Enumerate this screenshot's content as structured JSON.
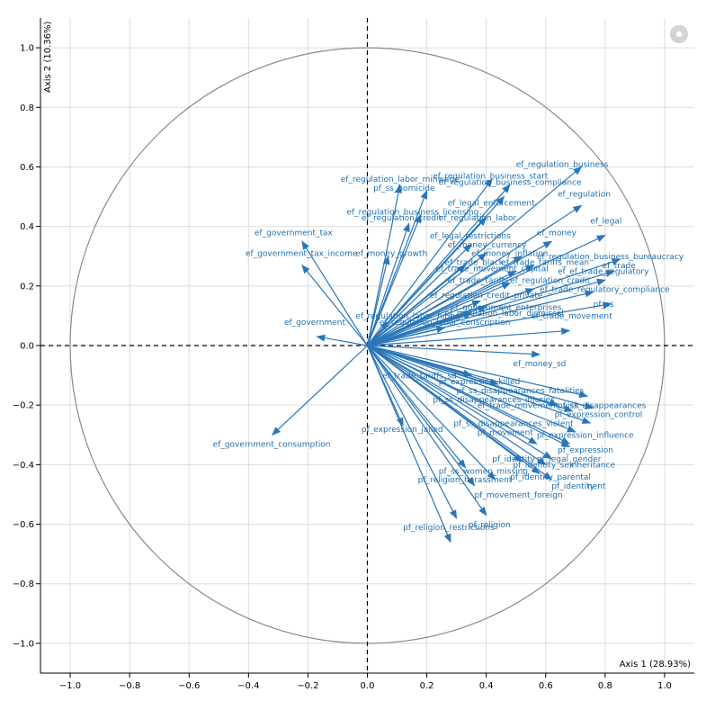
{
  "chart_data": {
    "type": "scatter",
    "subtype": "pca-correlation-circle",
    "title": "",
    "xlabel": "Axis 1 (28.93%)",
    "ylabel": "Axis 2 (10.36%)",
    "xlim": [
      -1.1,
      1.1
    ],
    "ylim": [
      -1.1,
      1.1
    ],
    "xticks": [
      "-1.0",
      "-0.8",
      "-0.6",
      "-0.4",
      "-0.2",
      "0.0",
      "0.2",
      "0.4",
      "0.6",
      "0.8",
      "1.0"
    ],
    "yticks": [
      "-1.0",
      "-0.8",
      "-0.6",
      "-0.4",
      "-0.2",
      "0.0",
      "0.2",
      "0.4",
      "0.6",
      "0.8",
      "1.0"
    ],
    "grid": true,
    "unit_circle": true,
    "colors": {
      "arrow": "#2a76b8",
      "label": "#1f6fae",
      "circle": "#8a8a8a",
      "grid": "#dddddd"
    },
    "vectors": [
      {
        "name": "ef_regulation_business",
        "x": 0.72,
        "y": 0.6
      },
      {
        "name": "ef_regulation_business_start",
        "x": 0.42,
        "y": 0.56
      },
      {
        "name": "ef_regulation_business_compliance",
        "x": 0.48,
        "y": 0.54
      },
      {
        "name": "ef_regulation_labor_minwage",
        "x": 0.2,
        "y": 0.52
      },
      {
        "name": "pf_ss_homicide",
        "x": 0.11,
        "y": 0.54
      },
      {
        "name": "ef_regulation",
        "x": 0.72,
        "y": 0.47
      },
      {
        "name": "ef_legal_enforcement",
        "x": 0.46,
        "y": 0.5
      },
      {
        "name": "ef_regulation_business_licensing",
        "x": 0.18,
        "y": 0.44
      },
      {
        "name": "ef_regulation_credit",
        "x": 0.14,
        "y": 0.41
      },
      {
        "name": "ef_regulation_labor",
        "x": 0.4,
        "y": 0.43
      },
      {
        "name": "ef_legal",
        "x": 0.8,
        "y": 0.37
      },
      {
        "name": "ef_legal_restrictions",
        "x": 0.35,
        "y": 0.34
      },
      {
        "name": "ef_money",
        "x": 0.62,
        "y": 0.35
      },
      {
        "name": "ef_money_currency",
        "x": 0.4,
        "y": 0.31
      },
      {
        "name": "ef_money_inflation",
        "x": 0.52,
        "y": 0.3
      },
      {
        "name": "ef_government_tax",
        "x": -0.22,
        "y": 0.35
      },
      {
        "name": "ef_government_tax_income",
        "x": -0.22,
        "y": 0.27
      },
      {
        "name": "ef_money_growth",
        "x": 0.07,
        "y": 0.3
      },
      {
        "name": "ef_trade_black",
        "x": 0.33,
        "y": 0.27
      },
      {
        "name": "ef_trade_tariffs_mean",
        "x": 0.56,
        "y": 0.27
      },
      {
        "name": "ef_regulation_business_bureaucracy",
        "x": 0.85,
        "y": 0.29
      },
      {
        "name": "ef_trade",
        "x": 0.83,
        "y": 0.25
      },
      {
        "name": "ef_trade_movement_capital",
        "x": 0.5,
        "y": 0.25
      },
      {
        "name": "ef_trade_regulatory",
        "x": 0.8,
        "y": 0.22
      },
      {
        "name": "ef_trade_tariffs",
        "x": 0.48,
        "y": 0.21
      },
      {
        "name": "ef_regulation_credit_private",
        "x": 0.56,
        "y": 0.19
      },
      {
        "name": "ef_trade_regulatory_compliance",
        "x": 0.76,
        "y": 0.18
      },
      {
        "name": "ef_regulation_credit_interest",
        "x": 0.38,
        "y": 0.15
      },
      {
        "name": "ef_government_enterprises",
        "x": 0.4,
        "y": 0.13
      },
      {
        "name": "pf_ss",
        "x": 0.82,
        "y": 0.14
      },
      {
        "name": "ef_regulation_labor_dismissal",
        "x": 0.35,
        "y": 0.11
      },
      {
        "name": "ef_regulation_labor_hiring",
        "x": 0.07,
        "y": 0.08
      },
      {
        "name": "ef_regulation_labor_conscription",
        "x": 0.26,
        "y": 0.06
      },
      {
        "name": "ef_trade_movement",
        "x": 0.68,
        "y": 0.05
      },
      {
        "name": "ef_government",
        "x": -0.17,
        "y": 0.03
      },
      {
        "name": "ef_money_sd",
        "x": 0.58,
        "y": -0.03
      },
      {
        "name": "ef_trade_tariffs_sd",
        "x": 0.35,
        "y": -0.1
      },
      {
        "name": "pf_expression_killed",
        "x": 0.44,
        "y": -0.13
      },
      {
        "name": "pf_ss_disappearances_fatalities",
        "x": 0.74,
        "y": -0.17
      },
      {
        "name": "pf_ss_disappearances_injuries",
        "x": 0.64,
        "y": -0.2
      },
      {
        "name": "ef_trade_movement_visit",
        "x": 0.69,
        "y": -0.22
      },
      {
        "name": "pf_ss_disappearances",
        "x": 0.76,
        "y": -0.21
      },
      {
        "name": "pf_expression_control",
        "x": 0.75,
        "y": -0.26
      },
      {
        "name": "pf_ss_disappearances_violent",
        "x": 0.7,
        "y": -0.29
      },
      {
        "name": "pf_expression_jailed",
        "x": 0.12,
        "y": -0.27
      },
      {
        "name": "pf_movement",
        "x": 0.57,
        "y": -0.33
      },
      {
        "name": "pf_expression_influence",
        "x": 0.68,
        "y": -0.33
      },
      {
        "name": "pf_expression",
        "x": 0.68,
        "y": -0.34
      },
      {
        "name": "pf_identity_legal",
        "x": 0.33,
        "y": -0.41
      },
      {
        "name": "pf_identity_legal_gender",
        "x": 0.52,
        "y": -0.39
      },
      {
        "name": "pf_identity_sex_male",
        "x": 0.6,
        "y": -0.4
      },
      {
        "name": "pf_identity_inheritance",
        "x": 0.62,
        "y": -0.38
      },
      {
        "name": "pf_ss_women_missing",
        "x": 0.43,
        "y": -0.45
      },
      {
        "name": "pf_identity_parental",
        "x": 0.58,
        "y": -0.43
      },
      {
        "name": "pf_identity",
        "x": 0.62,
        "y": -0.45
      },
      {
        "name": "pf_religion_harassment",
        "x": 0.36,
        "y": -0.47
      },
      {
        "name": "pf_movement_foreign",
        "x": 0.4,
        "y": -0.57
      },
      {
        "name": "pf_religion",
        "x": 0.3,
        "y": -0.58
      },
      {
        "name": "pf_religion_restrictions",
        "x": 0.28,
        "y": -0.66
      },
      {
        "name": "ef_government_consumption",
        "x": -0.32,
        "y": -0.3
      }
    ],
    "labels": [
      {
        "text": "ef_regulation_business",
        "x": 0.5,
        "y": 0.6,
        "anchor": "start"
      },
      {
        "text": "ef_regulation_business_start",
        "x": 0.22,
        "y": 0.56,
        "anchor": "start"
      },
      {
        "text": "ef_regulation_labor_minwage",
        "x": -0.09,
        "y": 0.55,
        "anchor": "start"
      },
      {
        "text": "ef_regulation_business_compliance",
        "x": 0.24,
        "y": 0.54,
        "anchor": "start"
      },
      {
        "text": "pf_ss_homicide",
        "x": 0.02,
        "y": 0.52,
        "anchor": "start"
      },
      {
        "text": "ef_regulation",
        "x": 0.64,
        "y": 0.5,
        "anchor": "start"
      },
      {
        "text": "ef_legal_enforcement",
        "x": 0.27,
        "y": 0.47,
        "anchor": "start"
      },
      {
        "text": "ef_regulation_business_licensing",
        "x": -0.07,
        "y": 0.44,
        "anchor": "start"
      },
      {
        "text": "ef_regulation_credit",
        "x": -0.02,
        "y": 0.42,
        "anchor": "start"
      },
      {
        "text": "ef_regulation_labor",
        "x": 0.24,
        "y": 0.42,
        "anchor": "start"
      },
      {
        "text": "ef_legal",
        "x": 0.75,
        "y": 0.41,
        "anchor": "start"
      },
      {
        "text": "ef_government_tax",
        "x": -0.38,
        "y": 0.37,
        "anchor": "start"
      },
      {
        "text": "ef_money",
        "x": 0.57,
        "y": 0.37,
        "anchor": "start"
      },
      {
        "text": "ef_legal_restrictions",
        "x": 0.21,
        "y": 0.36,
        "anchor": "start"
      },
      {
        "text": "ef_money_currency",
        "x": 0.27,
        "y": 0.33,
        "anchor": "start"
      },
      {
        "text": "ef_money_inflation",
        "x": 0.35,
        "y": 0.3,
        "anchor": "start"
      },
      {
        "text": "ef_government_tax_income",
        "x": -0.41,
        "y": 0.3,
        "anchor": "start"
      },
      {
        "text": "ef_money_growth",
        "x": -0.04,
        "y": 0.3,
        "anchor": "start"
      },
      {
        "text": "ef_trade_black",
        "x": 0.26,
        "y": 0.27,
        "anchor": "start"
      },
      {
        "text": "ef_trade_tariffs_mean",
        "x": 0.45,
        "y": 0.27,
        "anchor": "start"
      },
      {
        "text": "ef_regulation_business_bureaucracy",
        "x": 0.57,
        "y": 0.29,
        "anchor": "start"
      },
      {
        "text": "ef_trade",
        "x": 0.79,
        "y": 0.26,
        "anchor": "start"
      },
      {
        "text": "ef_trade_movement_capital",
        "x": 0.23,
        "y": 0.25,
        "anchor": "start"
      },
      {
        "text": "ef_ef_trade_regulatory",
        "x": 0.64,
        "y": 0.24,
        "anchor": "start"
      },
      {
        "text": "ef_trade_tariffs",
        "x": 0.27,
        "y": 0.21,
        "anchor": "start"
      },
      {
        "text": "ef_regulation_credit",
        "x": 0.48,
        "y": 0.21,
        "anchor": "start"
      },
      {
        "text": "ef_trade_regulatory_compliance",
        "x": 0.58,
        "y": 0.18,
        "anchor": "start"
      },
      {
        "text": "ef_regulation_credit_private",
        "x": 0.21,
        "y": 0.16,
        "anchor": "start"
      },
      {
        "text": "ef_government_enterprises",
        "x": 0.28,
        "y": 0.12,
        "anchor": "start"
      },
      {
        "text": "pf_ss",
        "x": 0.76,
        "y": 0.13,
        "anchor": "start"
      },
      {
        "text": "ef_regulation_labor_dismissal",
        "x": 0.26,
        "y": 0.1,
        "anchor": "start"
      },
      {
        "text": "ef_regulation_labor_hiring",
        "x": -0.04,
        "y": 0.09,
        "anchor": "start"
      },
      {
        "text": "ef_regulation_labor_conscription",
        "x": 0.04,
        "y": 0.07,
        "anchor": "start"
      },
      {
        "text": "ef_trade_movement",
        "x": 0.55,
        "y": 0.09,
        "anchor": "start"
      },
      {
        "text": "ef_government",
        "x": -0.28,
        "y": 0.07,
        "anchor": "start"
      },
      {
        "text": "ef_money_sd",
        "x": 0.49,
        "y": -0.07,
        "anchor": "start"
      },
      {
        "text": "ef_trade_tariffs_sd",
        "x": 0.05,
        "y": -0.11,
        "anchor": "start"
      },
      {
        "text": "pf_expression_killed",
        "x": 0.24,
        "y": -0.13,
        "anchor": "start"
      },
      {
        "text": "pf_ss_disappearances_fatalities",
        "x": 0.3,
        "y": -0.16,
        "anchor": "start"
      },
      {
        "text": "pf_ss_disappearances_injuries",
        "x": 0.22,
        "y": -0.19,
        "anchor": "start"
      },
      {
        "text": "ef_trade_movement_visit",
        "x": 0.37,
        "y": -0.21,
        "anchor": "start"
      },
      {
        "text": "pf_ss_disappearances",
        "x": 0.64,
        "y": -0.21,
        "anchor": "start"
      },
      {
        "text": "pf_expression_control",
        "x": 0.63,
        "y": -0.24,
        "anchor": "start"
      },
      {
        "text": "pf_ss_disappearances_violent",
        "x": 0.29,
        "y": -0.27,
        "anchor": "start"
      },
      {
        "text": "pf_expression_jailed",
        "x": -0.02,
        "y": -0.29,
        "anchor": "start"
      },
      {
        "text": "pf_movement",
        "x": 0.37,
        "y": -0.3,
        "anchor": "start"
      },
      {
        "text": "pf_expression_influence",
        "x": 0.57,
        "y": -0.31,
        "anchor": "start"
      },
      {
        "text": "pf_expression",
        "x": 0.64,
        "y": -0.36,
        "anchor": "start"
      },
      {
        "text": "pf_identity",
        "x": 0.42,
        "y": -0.39,
        "anchor": "start"
      },
      {
        "text": "pf_legal_gender",
        "x": 0.57,
        "y": -0.39,
        "anchor": "start"
      },
      {
        "text": "pf_identity_sex",
        "x": 0.49,
        "y": -0.41,
        "anchor": "start"
      },
      {
        "text": "inheritance",
        "x": 0.68,
        "y": -0.41,
        "anchor": "start"
      },
      {
        "text": "pf_ss_women_missing",
        "x": 0.24,
        "y": -0.43,
        "anchor": "start"
      },
      {
        "text": "pf_identity_parental",
        "x": 0.48,
        "y": -0.45,
        "anchor": "start"
      },
      {
        "text": "pf_religion_harassment",
        "x": 0.17,
        "y": -0.46,
        "anchor": "start"
      },
      {
        "text": "pf_identity",
        "x": 0.62,
        "y": -0.48,
        "anchor": "start"
      },
      {
        "text": "nent",
        "x": 0.74,
        "y": -0.48,
        "anchor": "start"
      },
      {
        "text": "pf_movement_foreign",
        "x": 0.36,
        "y": -0.51,
        "anchor": "start"
      },
      {
        "text": "ef_government_consumption",
        "x": -0.52,
        "y": -0.34,
        "anchor": "start"
      },
      {
        "text": "pf_religion",
        "x": 0.34,
        "y": -0.61,
        "anchor": "start"
      },
      {
        "text": "pf_religion_restrictions",
        "x": 0.12,
        "y": -0.62,
        "anchor": "start"
      }
    ]
  }
}
